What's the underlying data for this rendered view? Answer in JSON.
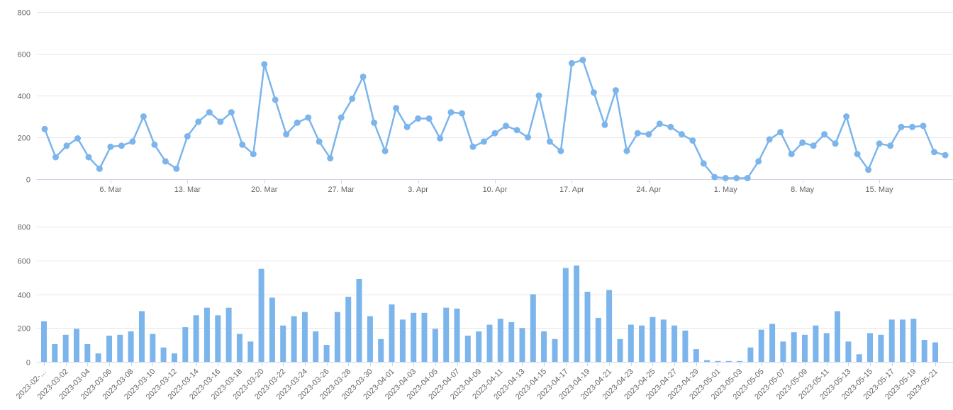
{
  "colors": {
    "series": "#7cb5ec",
    "grid": "#e6e6e6",
    "axis": "#ccd6eb",
    "label": "#666666",
    "background": "#ffffff"
  },
  "chart_data": [
    {
      "type": "line",
      "title": "",
      "xlabel": "",
      "ylabel": "",
      "legend": "none",
      "grid": "horizontal",
      "marker": "circle",
      "series_color": "#7cb5ec",
      "ylim": [
        0,
        800
      ],
      "yticks": [
        0,
        200,
        400,
        600,
        800
      ],
      "xticks": [
        {
          "date": "2023-03-06",
          "label": "6. Mar"
        },
        {
          "date": "2023-03-13",
          "label": "13. Mar"
        },
        {
          "date": "2023-03-20",
          "label": "20. Mar"
        },
        {
          "date": "2023-03-27",
          "label": "27. Mar"
        },
        {
          "date": "2023-04-03",
          "label": "3. Apr"
        },
        {
          "date": "2023-04-10",
          "label": "10. Apr"
        },
        {
          "date": "2023-04-17",
          "label": "17. Apr"
        },
        {
          "date": "2023-04-24",
          "label": "24. Apr"
        },
        {
          "date": "2023-05-01",
          "label": "1. May"
        },
        {
          "date": "2023-05-08",
          "label": "8. May"
        },
        {
          "date": "2023-05-15",
          "label": "15. May"
        }
      ],
      "x": [
        "2023-02-28",
        "2023-03-01",
        "2023-03-02",
        "2023-03-03",
        "2023-03-04",
        "2023-03-05",
        "2023-03-06",
        "2023-03-07",
        "2023-03-08",
        "2023-03-09",
        "2023-03-10",
        "2023-03-11",
        "2023-03-12",
        "2023-03-13",
        "2023-03-14",
        "2023-03-15",
        "2023-03-16",
        "2023-03-17",
        "2023-03-18",
        "2023-03-19",
        "2023-03-20",
        "2023-03-21",
        "2023-03-22",
        "2023-03-23",
        "2023-03-24",
        "2023-03-25",
        "2023-03-26",
        "2023-03-27",
        "2023-03-28",
        "2023-03-29",
        "2023-03-30",
        "2023-03-31",
        "2023-04-01",
        "2023-04-02",
        "2023-04-03",
        "2023-04-04",
        "2023-04-05",
        "2023-04-06",
        "2023-04-07",
        "2023-04-08",
        "2023-04-09",
        "2023-04-10",
        "2023-04-11",
        "2023-04-12",
        "2023-04-13",
        "2023-04-14",
        "2023-04-15",
        "2023-04-16",
        "2023-04-17",
        "2023-04-18",
        "2023-04-19",
        "2023-04-20",
        "2023-04-21",
        "2023-04-22",
        "2023-04-23",
        "2023-04-24",
        "2023-04-25",
        "2023-04-26",
        "2023-04-27",
        "2023-04-28",
        "2023-04-29",
        "2023-04-30",
        "2023-05-01",
        "2023-05-02",
        "2023-05-03",
        "2023-05-04",
        "2023-05-05",
        "2023-05-06",
        "2023-05-07",
        "2023-05-08",
        "2023-05-09",
        "2023-05-10",
        "2023-05-11",
        "2023-05-12",
        "2023-05-13",
        "2023-05-14",
        "2023-05-15",
        "2023-05-16",
        "2023-05-17",
        "2023-05-18",
        "2023-05-19",
        "2023-05-20",
        "2023-05-21"
      ],
      "values": [
        240,
        105,
        160,
        195,
        105,
        50,
        155,
        160,
        180,
        300,
        165,
        85,
        50,
        205,
        275,
        320,
        275,
        320,
        165,
        120,
        550,
        380,
        215,
        270,
        295,
        180,
        100,
        295,
        385,
        490,
        270,
        135,
        340,
        250,
        290,
        290,
        195,
        320,
        315,
        155,
        180,
        220,
        255,
        235,
        200,
        400,
        180,
        135,
        555,
        570,
        415,
        260,
        425,
        135,
        220,
        215,
        265,
        250,
        215,
        185,
        75,
        10,
        5,
        5,
        5,
        85,
        190,
        225,
        120,
        175,
        160,
        215,
        170,
        300,
        120,
        45,
        170,
        160,
        250,
        250,
        255,
        130,
        115
      ]
    },
    {
      "type": "bar",
      "title": "",
      "xlabel": "",
      "ylabel": "",
      "legend": "none",
      "grid": "horizontal",
      "series_color": "#7cb5ec",
      "ylim": [
        0,
        800
      ],
      "yticks": [
        0,
        200,
        400,
        600,
        800
      ],
      "xtick_every": 2,
      "xtick_first_label": "2023-02-…",
      "xtick_rotation": -45,
      "categories": [
        "2023-02-28",
        "2023-03-01",
        "2023-03-02",
        "2023-03-03",
        "2023-03-04",
        "2023-03-05",
        "2023-03-06",
        "2023-03-07",
        "2023-03-08",
        "2023-03-09",
        "2023-03-10",
        "2023-03-11",
        "2023-03-12",
        "2023-03-13",
        "2023-03-14",
        "2023-03-15",
        "2023-03-16",
        "2023-03-17",
        "2023-03-18",
        "2023-03-19",
        "2023-03-20",
        "2023-03-21",
        "2023-03-22",
        "2023-03-23",
        "2023-03-24",
        "2023-03-25",
        "2023-03-26",
        "2023-03-27",
        "2023-03-28",
        "2023-03-29",
        "2023-03-30",
        "2023-03-31",
        "2023-04-01",
        "2023-04-02",
        "2023-04-03",
        "2023-04-04",
        "2023-04-05",
        "2023-04-06",
        "2023-04-07",
        "2023-04-08",
        "2023-04-09",
        "2023-04-10",
        "2023-04-11",
        "2023-04-12",
        "2023-04-13",
        "2023-04-14",
        "2023-04-15",
        "2023-04-16",
        "2023-04-17",
        "2023-04-18",
        "2023-04-19",
        "2023-04-20",
        "2023-04-21",
        "2023-04-22",
        "2023-04-23",
        "2023-04-24",
        "2023-04-25",
        "2023-04-26",
        "2023-04-27",
        "2023-04-28",
        "2023-04-29",
        "2023-04-30",
        "2023-05-01",
        "2023-05-02",
        "2023-05-03",
        "2023-05-04",
        "2023-05-05",
        "2023-05-06",
        "2023-05-07",
        "2023-05-08",
        "2023-05-09",
        "2023-05-10",
        "2023-05-11",
        "2023-05-12",
        "2023-05-13",
        "2023-05-14",
        "2023-05-15",
        "2023-05-16",
        "2023-05-17",
        "2023-05-18",
        "2023-05-19",
        "2023-05-20",
        "2023-05-21"
      ],
      "values": [
        240,
        105,
        160,
        195,
        105,
        50,
        155,
        160,
        180,
        300,
        165,
        85,
        50,
        205,
        275,
        320,
        275,
        320,
        165,
        120,
        550,
        380,
        215,
        270,
        295,
        180,
        100,
        295,
        385,
        490,
        270,
        135,
        340,
        250,
        290,
        290,
        195,
        320,
        315,
        155,
        180,
        220,
        255,
        235,
        200,
        400,
        180,
        135,
        555,
        570,
        415,
        260,
        425,
        135,
        220,
        215,
        265,
        250,
        215,
        185,
        75,
        10,
        5,
        5,
        5,
        85,
        190,
        225,
        120,
        175,
        160,
        215,
        170,
        300,
        120,
        45,
        170,
        160,
        250,
        250,
        255,
        130,
        115
      ]
    }
  ]
}
